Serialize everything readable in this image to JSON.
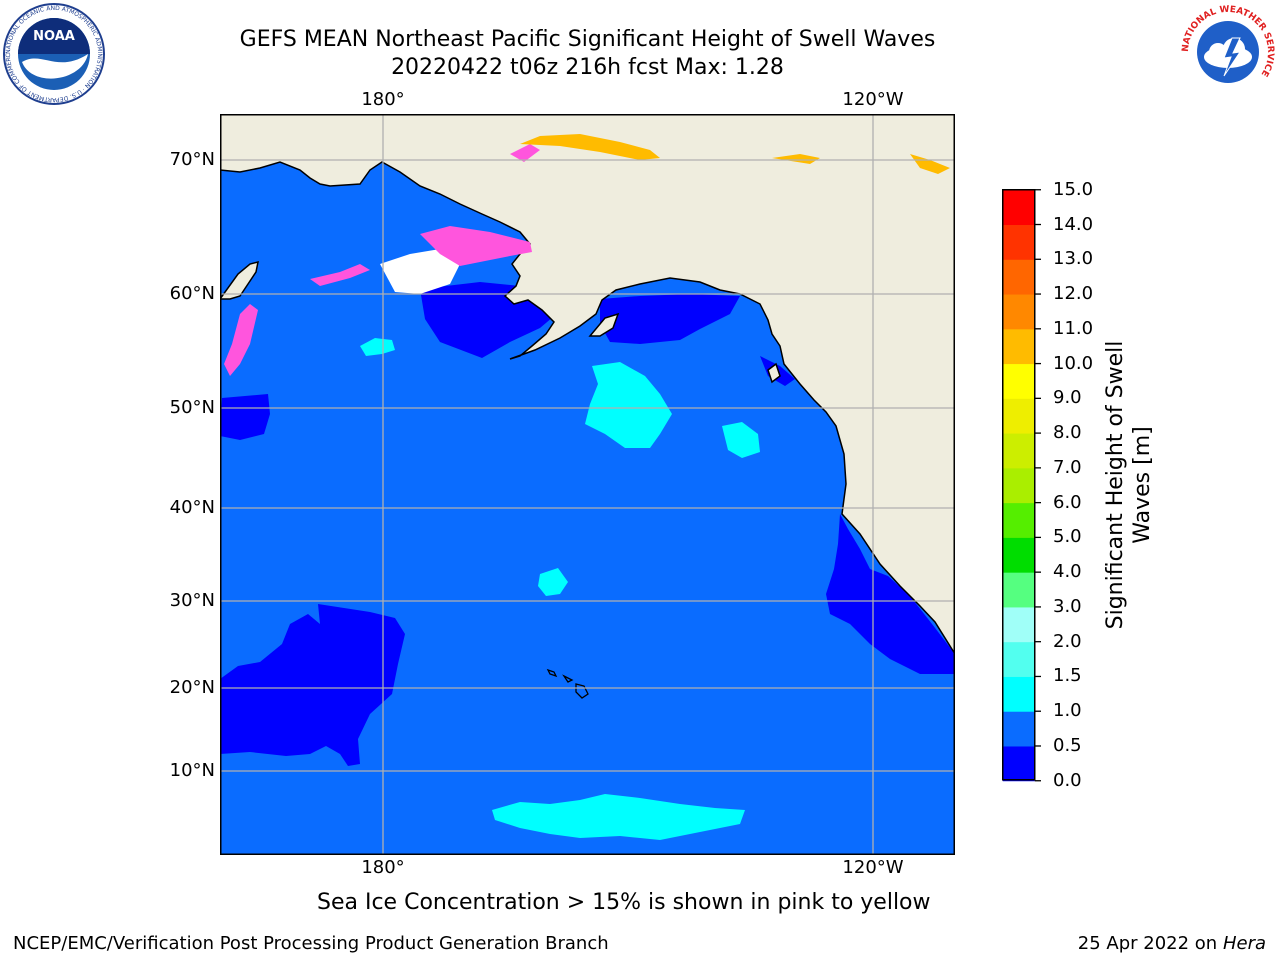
{
  "header": {
    "title_line1": "GEFS MEAN Northeast Pacific Significant Height of Swell Waves",
    "title_line2": "20220422 t06z 216h fcst   Max: 1.28"
  },
  "logos": {
    "noaa": {
      "text": "NOAA",
      "ring_text": "NATIONAL OCEANIC AND ATMOSPHERIC ADMINISTRATION · U.S. DEPARTMENT OF COMMERCE"
    },
    "nws": {
      "ring_text": "NATIONAL WEATHER SERVICE"
    }
  },
  "map": {
    "lat_labels": [
      "70°N",
      "60°N",
      "50°N",
      "40°N",
      "30°N",
      "20°N",
      "10°N"
    ],
    "lon_labels_top": [
      "180°",
      "120°W"
    ],
    "lon_labels_bottom": [
      "180°",
      "120°W"
    ],
    "grid": true,
    "colors": {
      "land": "#efedde",
      "ocean_0_5_1_0": "#0a6cff",
      "ocean_0_0_0_5": "#0000ff",
      "ocean_1_0_1_5": "#00ffff",
      "ocean_1_5_2_0": "#52ffef",
      "sea_ice": "#ff55dd",
      "grid": "#b0b0b0"
    }
  },
  "colorbar": {
    "label": "Significant Height of Swell Waves [m]",
    "label_line1": "Significant Height of Swell",
    "label_line2": "Waves [m]",
    "ticks": [
      "15.0",
      "14.0",
      "13.0",
      "12.0",
      "11.0",
      "10.0",
      "9.0",
      "8.0",
      "7.0",
      "6.0",
      "5.0",
      "4.0",
      "3.0",
      "2.0",
      "1.5",
      "1.0",
      "0.5",
      "0.0"
    ],
    "bins_bottom_to_top": [
      {
        "range": "0.0-0.5",
        "color": "#0000ff"
      },
      {
        "range": "0.5-1.0",
        "color": "#0a6cff"
      },
      {
        "range": "1.0-1.5",
        "color": "#00ffff"
      },
      {
        "range": "1.5-2.0",
        "color": "#52ffef"
      },
      {
        "range": "2.0-3.0",
        "color": "#a0fff8"
      },
      {
        "range": "3.0-4.0",
        "color": "#55ff80"
      },
      {
        "range": "4.0-5.0",
        "color": "#00dd00"
      },
      {
        "range": "5.0-6.0",
        "color": "#55ee00"
      },
      {
        "range": "6.0-7.0",
        "color": "#aaee00"
      },
      {
        "range": "7.0-8.0",
        "color": "#ccee00"
      },
      {
        "range": "8.0-9.0",
        "color": "#eeee00"
      },
      {
        "range": "9.0-10.0",
        "color": "#ffff00"
      },
      {
        "range": "10.0-11.0",
        "color": "#ffbb00"
      },
      {
        "range": "11.0-12.0",
        "color": "#ff8800"
      },
      {
        "range": "12.0-13.0",
        "color": "#ff6600"
      },
      {
        "range": "13.0-14.0",
        "color": "#ff3300"
      },
      {
        "range": "14.0-15.0",
        "color": "#ff0000"
      }
    ]
  },
  "note": "Sea Ice Concentration > 15% is shown in pink to yellow",
  "footer": {
    "left": "NCEP/EMC/Verification Post Processing Product Generation Branch",
    "right_prefix": "25 Apr 2022 on ",
    "right_host": "Hera"
  }
}
